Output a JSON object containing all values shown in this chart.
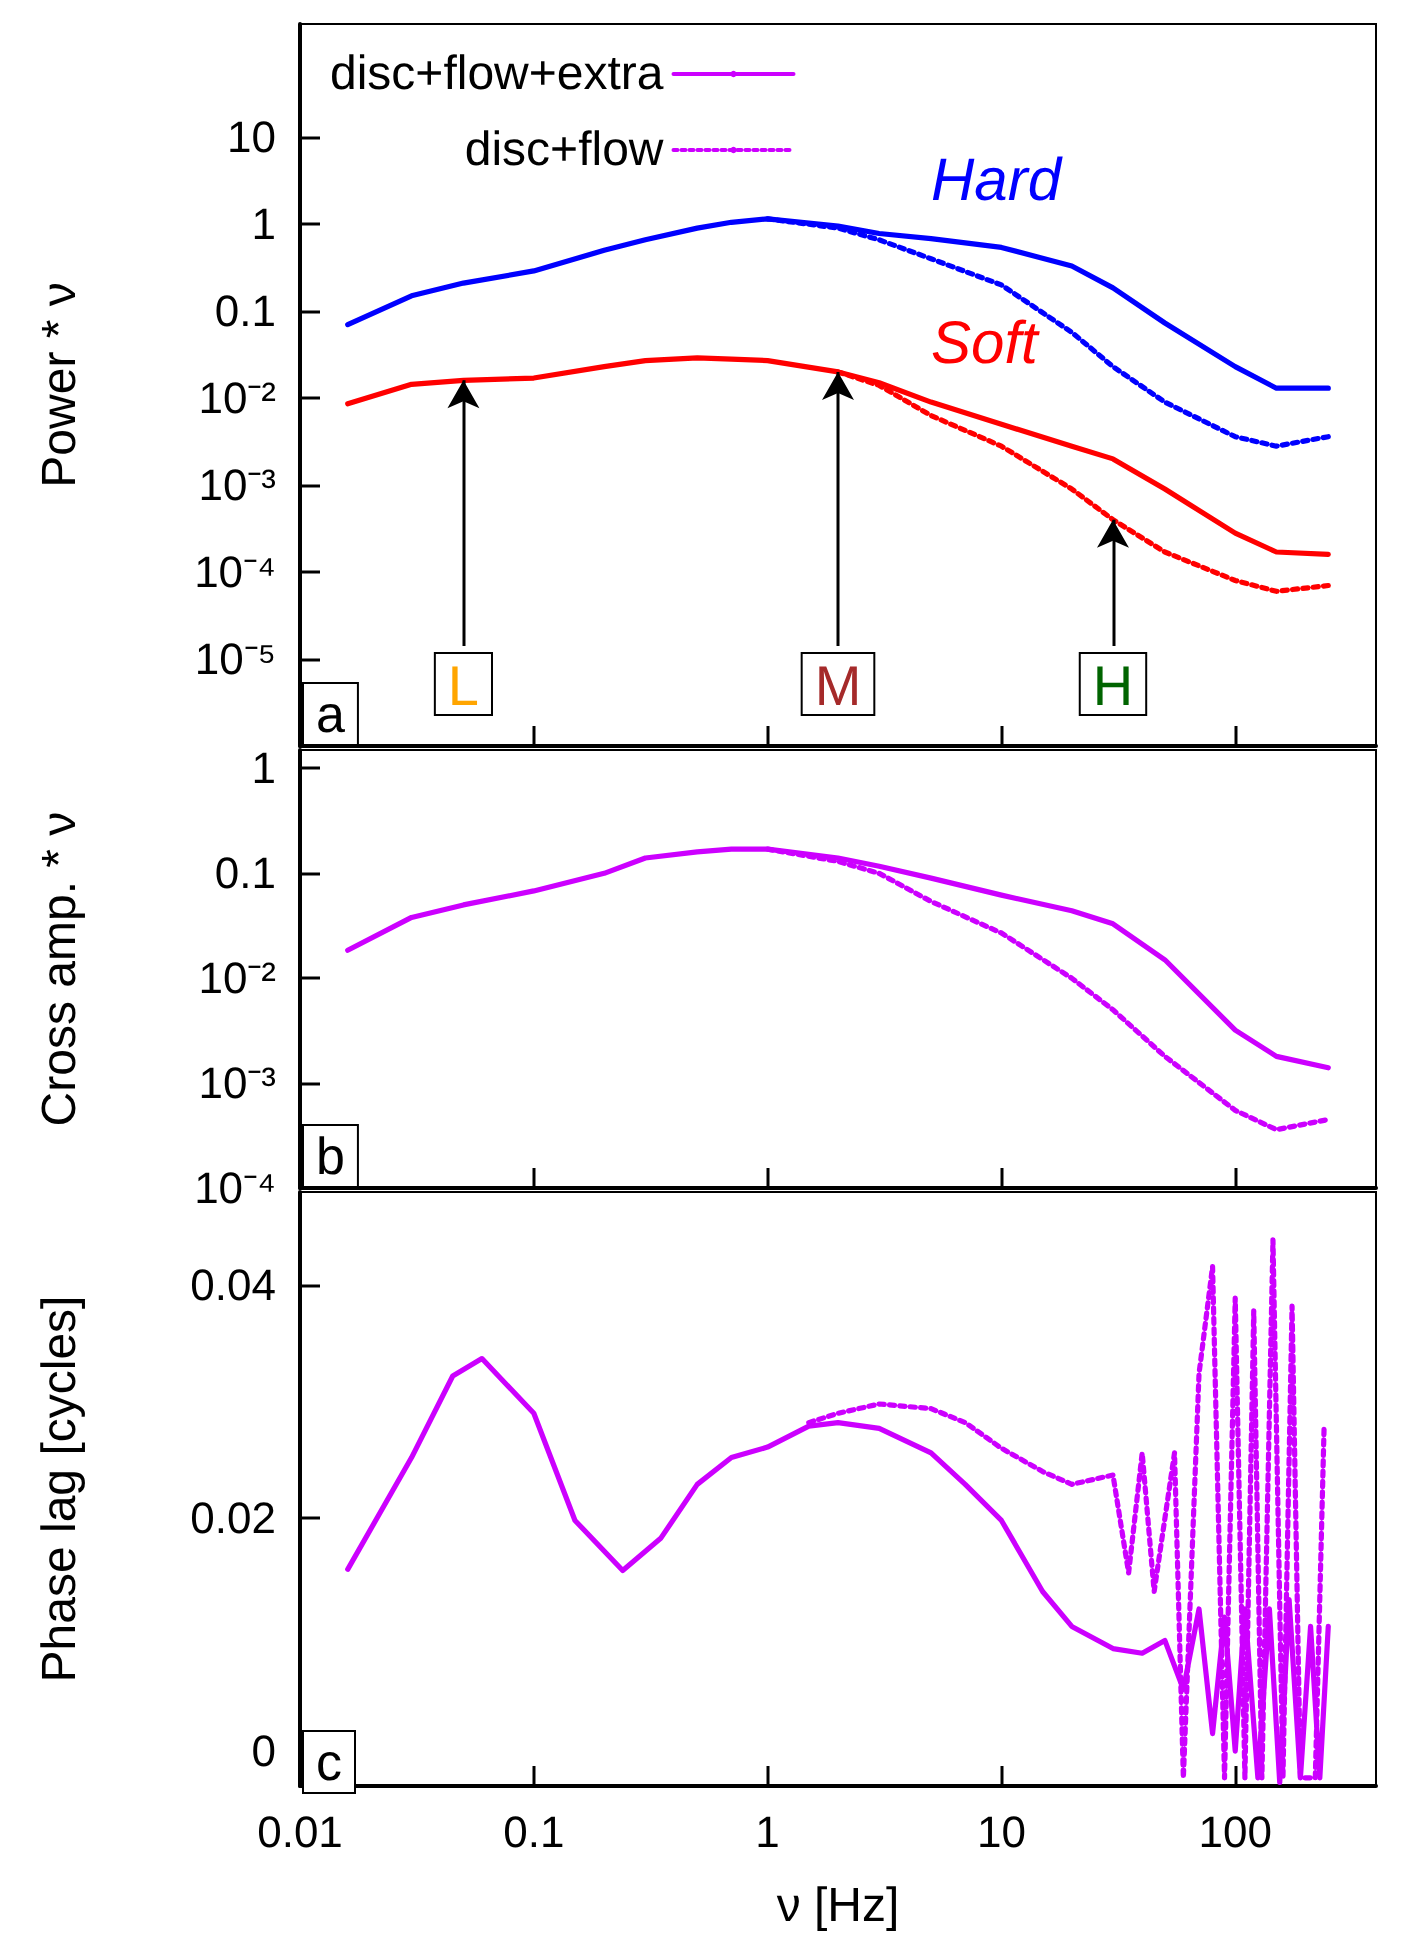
{
  "chart_data": [
    {
      "type": "line",
      "ylabel": "Power * ν",
      "log": "xy",
      "xlim": [
        0.01,
        400
      ],
      "ylim": [
        1e-06,
        200
      ],
      "tick_labels": "y",
      "xticks": [
        0.01,
        0.1,
        1,
        10,
        100
      ],
      "yticks": [
        {
          "value": 1e-05,
          "label": "10⁻⁵"
        },
        {
          "value": 0.0001,
          "label": "10⁻⁴"
        },
        {
          "value": 0.001,
          "label": "10⁻³"
        },
        {
          "value": 0.01,
          "label": "10⁻²"
        },
        0.1,
        1,
        10
      ],
      "x": [
        0.016,
        0.03,
        0.05,
        0.1,
        0.2,
        0.3,
        0.5,
        0.7,
        1,
        2,
        3,
        5,
        10,
        20,
        30,
        50,
        100,
        150,
        250
      ],
      "series": [
        {
          "name": "Hard",
          "color": "#0000ff",
          "line_style": "solid",
          "values": [
            0.07,
            0.15,
            0.21,
            0.29,
            0.5,
            0.66,
            0.9,
            1.05,
            1.15,
            0.95,
            0.78,
            0.68,
            0.54,
            0.33,
            0.185,
            0.073,
            0.023,
            0.013,
            0.013
          ]
        },
        {
          "color": "#0000ff",
          "line_style": "dotted",
          "values": [
            null,
            null,
            null,
            null,
            null,
            null,
            null,
            null,
            1.15,
            0.9,
            0.66,
            0.4,
            0.2,
            0.057,
            0.023,
            0.009,
            0.0036,
            0.0028,
            0.0036
          ]
        },
        {
          "name": "Soft",
          "color": "#ff0000",
          "line_style": "solid",
          "values": [
            0.0086,
            0.0144,
            0.016,
            0.017,
            0.023,
            0.027,
            0.029,
            0.028,
            0.027,
            0.02,
            0.015,
            0.009,
            0.005,
            0.0028,
            0.002,
            0.0009,
            0.00028,
            0.00017,
            0.00016
          ]
        },
        {
          "color": "#ff0000",
          "line_style": "dotted",
          "values": [
            null,
            null,
            null,
            null,
            null,
            null,
            null,
            null,
            null,
            0.02,
            0.014,
            0.0063,
            0.0028,
            0.0009,
            0.0004,
            0.00017,
            8e-05,
            6e-05,
            7e-05
          ]
        }
      ],
      "annotations": [
        "a",
        {
          "text": "L",
          "x": 0.05,
          "y": 0.016
        },
        {
          "text": "M",
          "x": 2,
          "y": 0.02
        },
        {
          "text": "H",
          "x": 30,
          "y": 0.0004
        }
      ]
    },
    {
      "type": "line",
      "ylabel": "Cross amp. * ν",
      "log": "xy",
      "xlim": [
        0.01,
        400
      ],
      "ylim": [
        0.0001,
        1.5
      ],
      "tick_labels": "y",
      "legend": "top left",
      "xticks": [
        0.01,
        0.1,
        1,
        10,
        100
      ],
      "yticks": [
        {
          "value": 0.0001,
          "label": "10⁻⁴"
        },
        {
          "value": 0.001,
          "label": "10⁻³"
        },
        {
          "value": 0.01,
          "label": "10⁻²"
        },
        0.1,
        1
      ],
      "x": [
        0.016,
        0.03,
        0.05,
        0.1,
        0.2,
        0.3,
        0.5,
        0.7,
        1,
        2,
        3,
        5,
        10,
        20,
        30,
        50,
        100,
        150,
        250
      ],
      "series": [
        {
          "name": "disc+flow+extra",
          "color": "#cc00ff",
          "line_style": "solid",
          "values": [
            0.0185,
            0.038,
            0.05,
            0.068,
            0.1,
            0.14,
            0.16,
            0.17,
            0.17,
            0.14,
            0.117,
            0.09,
            0.062,
            0.044,
            0.033,
            0.015,
            0.0032,
            0.0018,
            0.0014
          ]
        },
        {
          "name": "disc+flow",
          "color": "#cc00ff",
          "line_style": "dotted",
          "values": [
            null,
            null,
            null,
            null,
            null,
            null,
            null,
            null,
            0.17,
            0.13,
            0.1,
            0.054,
            0.027,
            0.01,
            0.005,
            0.0018,
            0.00055,
            0.00036,
            0.00045
          ]
        }
      ],
      "annotations": [
        "b"
      ]
    },
    {
      "type": "line",
      "ylabel": "Phase lag [cycles]",
      "xlabel": "ν [Hz]",
      "log": "x",
      "xlim": [
        0.01,
        400
      ],
      "ylim": [
        -0.003,
        0.048
      ],
      "xticks": [
        0.01,
        0.1,
        1,
        10,
        100
      ],
      "yticks": [
        0,
        0.02,
        0.04
      ],
      "series": [
        {
          "color": "#cc00ff",
          "line_style": "solid",
          "x": [
            0.016,
            0.03,
            0.045,
            0.06,
            0.1,
            0.15,
            0.24,
            0.35,
            0.5,
            0.7,
            1,
            1.5,
            2,
            3,
            5,
            7,
            10,
            15,
            20,
            30,
            40,
            50,
            60,
            70,
            80,
            90,
            100,
            110,
            125,
            140,
            155,
            170,
            190,
            210,
            230,
            250
          ],
          "values": [
            0.0156,
            0.0252,
            0.0322,
            0.0337,
            0.029,
            0.0198,
            0.0155,
            0.0183,
            0.0229,
            0.0252,
            0.0261,
            0.0279,
            0.0282,
            0.0277,
            0.0256,
            0.0229,
            0.0198,
            0.0137,
            0.0107,
            0.0088,
            0.0084,
            0.0095,
            0.0053,
            0.0122,
            0.0015,
            0.0115,
            0,
            0.0122,
            -0.0023,
            0.0122,
            -0.0027,
            0.013,
            -0.0023,
            0.0107,
            -0.0023,
            0.0107
          ]
        },
        {
          "color": "#cc00ff",
          "line_style": "dotted",
          "x": [
            1.5,
            2,
            3,
            5,
            7,
            10,
            15,
            20,
            30,
            35,
            40,
            45,
            55,
            60,
            70,
            80,
            90,
            100,
            110,
            120,
            130,
            145,
            160,
            175,
            190,
            220,
            240
          ],
          "values": [
            0.0282,
            0.029,
            0.0298,
            0.0294,
            0.0282,
            0.026,
            0.024,
            0.0229,
            0.0237,
            0.0153,
            0.0256,
            0.0137,
            0.0256,
            -0.0023,
            0.0324,
            0.0416,
            -0.0023,
            0.0389,
            -0.0023,
            0.0378,
            -0.0023,
            0.0439,
            -0.0023,
            0.0382,
            -0.0023,
            -0.0023,
            0.0279
          ]
        }
      ],
      "annotations": [
        "c"
      ]
    }
  ]
}
